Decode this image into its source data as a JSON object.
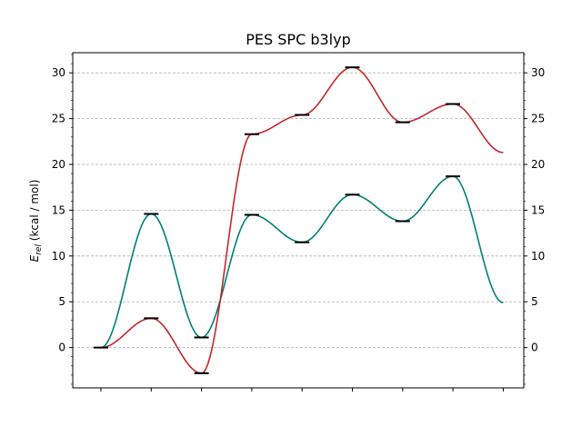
{
  "chart_data": {
    "type": "line",
    "title": "PES SPC b3lyp",
    "ylabel_symbol": "E",
    "ylabel_sub": "rel",
    "ylabel_unit": " (kcal / mol)",
    "xlabel": "",
    "x": [
      0,
      1,
      2,
      3,
      4,
      5,
      6,
      7,
      8
    ],
    "ylim": [
      -4.4,
      32.2
    ],
    "yticks": [
      0,
      5,
      10,
      15,
      20,
      25,
      30
    ],
    "grid": true,
    "right_axis_mirrored": true,
    "series": [
      {
        "color": "#008072",
        "values": [
          0.0,
          14.6,
          1.1,
          14.5,
          11.5,
          16.7,
          13.8,
          18.7,
          4.9
        ]
      },
      {
        "color": "#c0282d",
        "values": [
          0.0,
          3.2,
          -2.8,
          23.3,
          25.4,
          30.6,
          24.6,
          26.6,
          21.3
        ]
      }
    ],
    "levels": [
      [
        0,
        0.0
      ],
      [
        1,
        14.6
      ],
      [
        1,
        3.2
      ],
      [
        2,
        1.1
      ],
      [
        2,
        -2.8
      ],
      [
        3,
        14.5
      ],
      [
        3,
        23.3
      ],
      [
        4,
        11.5
      ],
      [
        4,
        25.4
      ],
      [
        5,
        16.7
      ],
      [
        5,
        30.6
      ],
      [
        6,
        13.8
      ],
      [
        6,
        24.6
      ],
      [
        7,
        18.7
      ],
      [
        7,
        26.6
      ]
    ]
  }
}
